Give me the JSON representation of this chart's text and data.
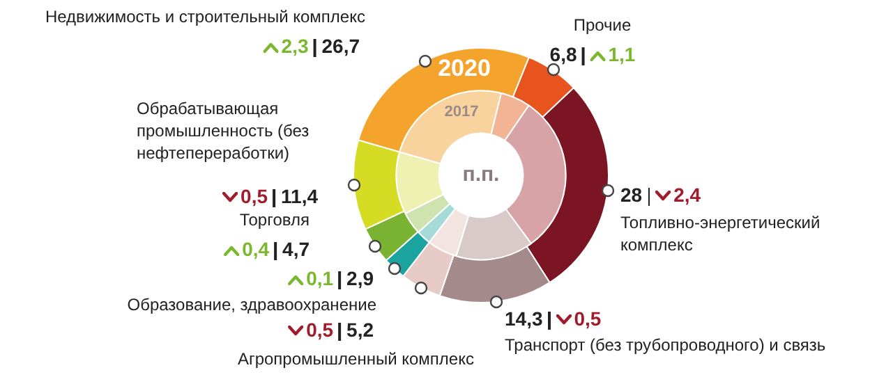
{
  "chart_data": {
    "type": "donut",
    "categories": [
      "Недвижимость и строительный комплекс",
      "Прочие",
      "Топливно-энергетический комплекс",
      "Транспорт (без трубопроводного) и связь",
      "Агропромышленный комплекс",
      "Образование, здравоохранение",
      "Торговля",
      "Обрабатывающая промышленность (без нефтепереработки)"
    ],
    "series": [
      {
        "name": "2020",
        "values": [
          26.7,
          6.8,
          28,
          14.3,
          5.2,
          2.9,
          4.7,
          11.4
        ],
        "colors": [
          "#f4a42c",
          "#e8541e",
          "#7b1423",
          "#a48a8a",
          "#e6cbc6",
          "#1aa39f",
          "#7ab332",
          "#d5dc23"
        ],
        "value_labels": [
          "26,7",
          "6,8",
          "28",
          "14,3",
          "5,2",
          "2,9",
          "4,7",
          "11,4"
        ]
      },
      {
        "name": "2017",
        "values": [
          24.4,
          5.7,
          30.4,
          14.8,
          5.7,
          2.8,
          4.3,
          11.9
        ],
        "colors": [
          "#f9d39e",
          "#f3b496",
          "#d8a3a6",
          "#d9caca",
          "#f2e4e1",
          "#a6dad7",
          "#cfe3b0",
          "#eef1b2"
        ]
      }
    ],
    "annotations": [
      "2,3",
      "1,1",
      "2,4",
      "0,5",
      "0,5",
      "0,1",
      "0,4",
      "0,5",
      "п.п."
    ],
    "legend": false
  }
}
